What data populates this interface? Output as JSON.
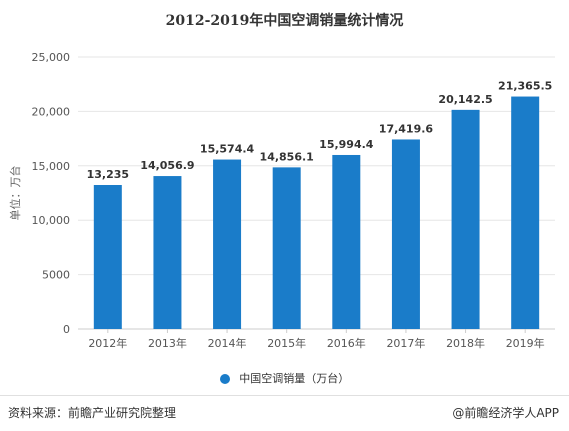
{
  "title": "2012-2019年中国空调销量统计情况",
  "footer_source": "资料来源：前瞻产业研究院整理",
  "footer_brand": "@前瞻经济学人APP",
  "colors": {
    "bar": "#1a7cc9",
    "grid": "#e6e6e6",
    "axis": "#cccccc"
  },
  "chart_data": {
    "type": "bar",
    "title": "2012-2019年中国空调销量统计情况",
    "xlabel": "",
    "ylabel": "单位：万台",
    "categories": [
      "2012年",
      "2013年",
      "2014年",
      "2015年",
      "2016年",
      "2017年",
      "2018年",
      "2019年"
    ],
    "series": [
      {
        "name": "中国空调销量（万台）",
        "values": [
          13235,
          14056.9,
          15574.4,
          14856.1,
          15994.4,
          17419.6,
          20142.5,
          21365.5
        ],
        "labels": [
          "13,235",
          "14,056.9",
          "15,574.4",
          "14,856.1",
          "15,994.4",
          "17,419.6",
          "20,142.5",
          "21,365.5"
        ]
      }
    ],
    "ylim": [
      0,
      25000
    ],
    "yticks": [
      0,
      5000,
      10000,
      15000,
      20000,
      25000
    ],
    "ytick_labels": [
      "0",
      "5000",
      "10,000",
      "15,000",
      "20,000",
      "25,000"
    ],
    "grid": true,
    "legend_position": "bottom"
  }
}
